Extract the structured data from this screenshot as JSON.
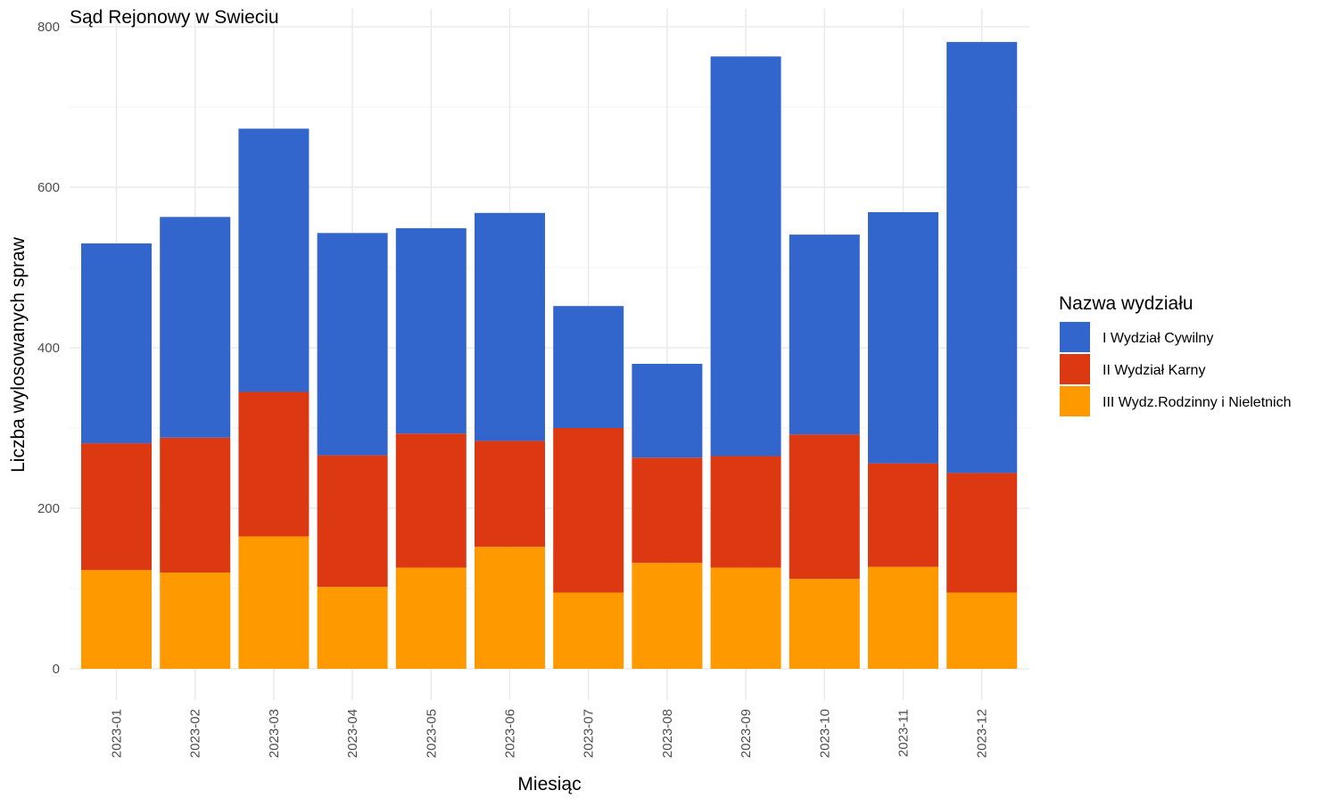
{
  "chart_data": {
    "type": "bar",
    "stacked": true,
    "title": "Sąd Rejonowy w Swieciu",
    "xlabel": "Miesiąc",
    "ylabel": "Liczba wylosowanych spraw",
    "ylim": [
      0,
      800
    ],
    "yticks": [
      0,
      200,
      400,
      600,
      800
    ],
    "grid": true,
    "legend_position": "right",
    "legend_title": "Nazwa wydziału",
    "categories": [
      "2023-01",
      "2023-02",
      "2023-03",
      "2023-04",
      "2023-05",
      "2023-06",
      "2023-07",
      "2023-08",
      "2023-09",
      "2023-10",
      "2023-11",
      "2023-12"
    ],
    "series": [
      {
        "name": "III Wydz.Rodzinny i Nieletnich",
        "color": "#FF9900",
        "values": [
          123,
          120,
          165,
          102,
          126,
          152,
          95,
          132,
          126,
          112,
          127,
          95
        ]
      },
      {
        "name": "II Wydział Karny",
        "color": "#DC3912",
        "values": [
          158,
          168,
          180,
          164,
          167,
          132,
          205,
          131,
          139,
          180,
          129,
          149
        ]
      },
      {
        "name": "I Wydział Cywilny",
        "color": "#3366CC",
        "values": [
          249,
          275,
          328,
          277,
          256,
          284,
          152,
          117,
          498,
          249,
          313,
          537
        ]
      }
    ],
    "legend_order": [
      "I Wydział Cywilny",
      "II Wydział Karny",
      "III Wydz.Rodzinny i Nieletnich"
    ]
  }
}
